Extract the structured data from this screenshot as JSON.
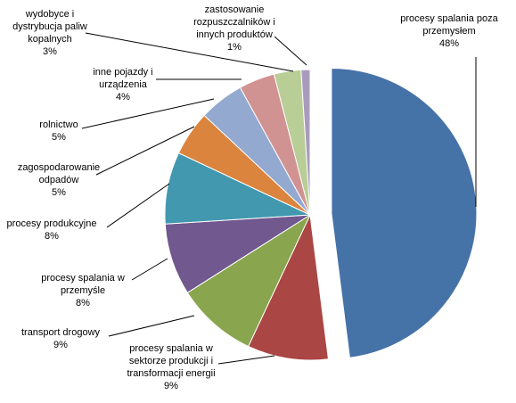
{
  "chart_data": {
    "type": "pie",
    "title": "",
    "legend": "none",
    "slices": [
      {
        "name": "procesy spalania  poza przemysłem",
        "label_lines": [
          "procesy spalania  poza",
          "przemysłem"
        ],
        "value": 48,
        "value_label": "48%",
        "color": "#4572A7",
        "exploded": true
      },
      {
        "name": "procesy spalania  w sektorze produkcji  i transformacji energii",
        "label_lines": [
          "procesy spalania  w",
          "sektorze produkcji  i",
          "transformacji energii"
        ],
        "value": 9,
        "value_label": "9%",
        "color": "#AA4643",
        "exploded": false
      },
      {
        "name": "transport drogowy",
        "label_lines": [
          "transport drogowy"
        ],
        "value": 9,
        "value_label": "9%",
        "color": "#89A54E",
        "exploded": false
      },
      {
        "name": "procesy spalania  w przemyśle",
        "label_lines": [
          "procesy spalania  w",
          "przemyśle"
        ],
        "value": 8,
        "value_label": "8%",
        "color": "#71588F",
        "exploded": false
      },
      {
        "name": "procesy produkcyjne",
        "label_lines": [
          "procesy produkcyjne"
        ],
        "value": 8,
        "value_label": "8%",
        "color": "#4198AF",
        "exploded": false
      },
      {
        "name": "zagospodarowanie odpadów",
        "label_lines": [
          "zagospodarowanie",
          "odpadów"
        ],
        "value": 5,
        "value_label": "5%",
        "color": "#DB843D",
        "exploded": false
      },
      {
        "name": "rolnictwo",
        "label_lines": [
          "rolnictwo"
        ],
        "value": 5,
        "value_label": "5%",
        "color": "#93A9CF",
        "exploded": false
      },
      {
        "name": "inne pojazdy  i urządzenia",
        "label_lines": [
          "inne pojazdy  i",
          "urządzenia"
        ],
        "value": 4,
        "value_label": "4%",
        "color": "#D19392",
        "exploded": false
      },
      {
        "name": "wydobyce i dystrybucja paliw kopalnych",
        "label_lines": [
          "wydobyce i",
          "dystrybucja paliw",
          "kopalnych"
        ],
        "value": 3,
        "value_label": "3%",
        "color": "#B9CD96",
        "exploded": false
      },
      {
        "name": "zastosowanie rozpuszczalników  i innych produktów",
        "label_lines": [
          "zastosowanie",
          "rozpuszczalników  i",
          "innych produktów"
        ],
        "value": 1,
        "value_label": "1%",
        "color": "#A99BBD",
        "exploded": false
      }
    ]
  }
}
